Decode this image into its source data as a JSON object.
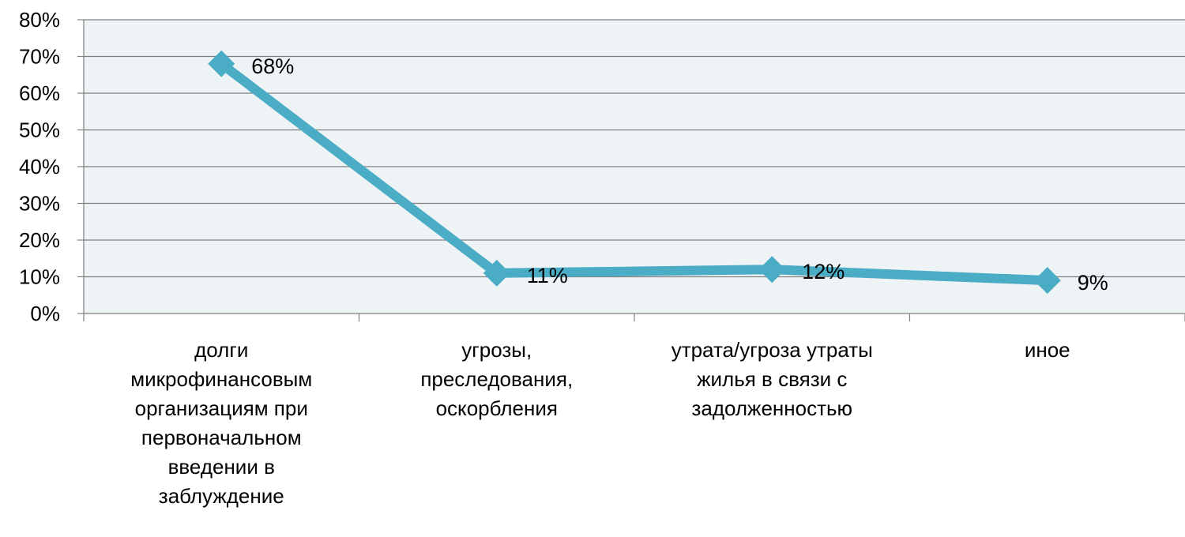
{
  "chart_data": {
    "type": "line",
    "categories": [
      "долги микрофинансовым организациям при первоначальном введении в заблуждение",
      "угрозы, преследования, оскорбления",
      "утрата/угроза утраты жилья в связи с задолженностью",
      "иное"
    ],
    "category_lines": [
      [
        "долги",
        "микрофинансовым",
        "организациям при",
        "первоначальном",
        "введении в",
        "заблуждение"
      ],
      [
        "угрозы,",
        "преследования,",
        "оскорбления"
      ],
      [
        "утрата/угроза утраты",
        "жилья в связи с",
        "задолженностью"
      ],
      [
        "иное"
      ]
    ],
    "series": [
      {
        "values": [
          68,
          11,
          12,
          9
        ]
      }
    ],
    "data_labels": [
      "68%",
      "11%",
      "12%",
      "9%"
    ],
    "y_ticks": [
      "0%",
      "10%",
      "20%",
      "30%",
      "40%",
      "50%",
      "60%",
      "70%",
      "80%"
    ],
    "ylim": [
      0,
      80
    ],
    "y_step": 10,
    "grid": true,
    "legend": "none",
    "title": "",
    "xlabel": "",
    "ylabel": "",
    "colors": {
      "line": "#4BACC6",
      "plot_background": "#EEF3F6",
      "gridline": "#808080",
      "axis": "#808080"
    },
    "marker": "diamond"
  }
}
